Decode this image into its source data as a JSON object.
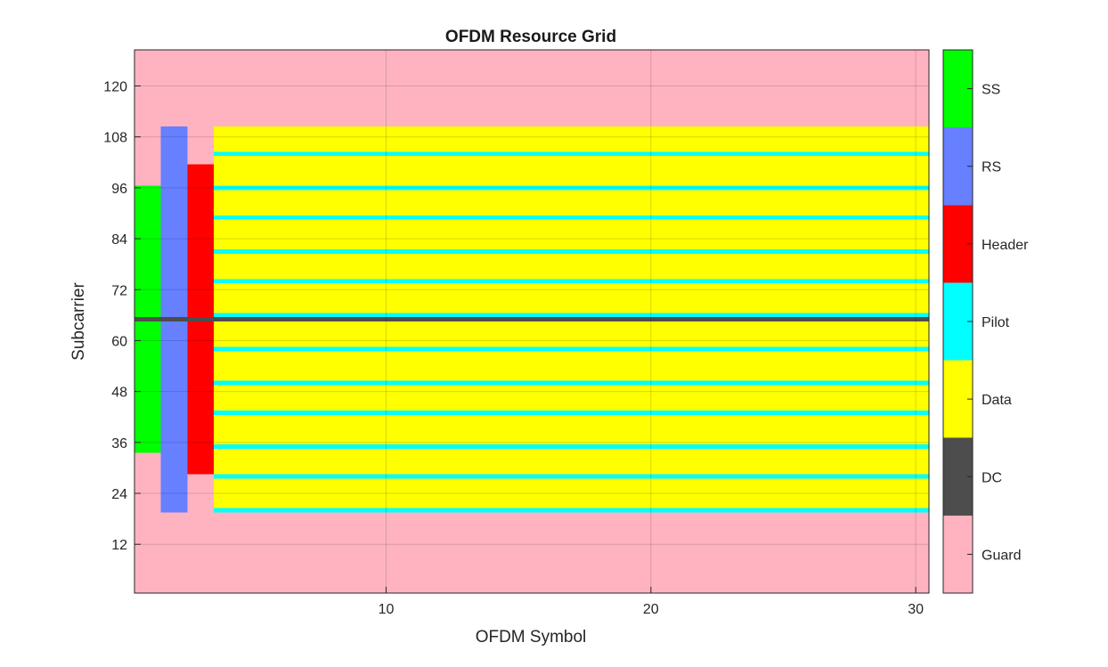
{
  "chart_data": {
    "type": "heatmap",
    "title": "OFDM Resource Grid",
    "xlabel": "OFDM Symbol",
    "ylabel": "Subcarrier",
    "xlim": [
      0.5,
      30.5
    ],
    "ylim": [
      0.5,
      128.5
    ],
    "xticks": [
      10,
      20,
      30
    ],
    "yticks": [
      12,
      24,
      36,
      48,
      60,
      72,
      84,
      96,
      108,
      120
    ],
    "grid": true,
    "categories": [
      {
        "name": "Guard",
        "color": "#ffb3c1"
      },
      {
        "name": "DC",
        "color": "#4d4d4d"
      },
      {
        "name": "Data",
        "color": "#ffff00"
      },
      {
        "name": "Pilot",
        "color": "#00ffff"
      },
      {
        "name": "Header",
        "color": "#ff0000"
      },
      {
        "name": "RS",
        "color": "#6680ff"
      },
      {
        "name": "SS",
        "color": "#00ff00"
      }
    ],
    "background_category": "Guard",
    "regions": [
      {
        "category": "SS",
        "symbols": [
          1,
          1
        ],
        "subcarriers": [
          34,
          96
        ]
      },
      {
        "category": "RS",
        "symbols": [
          2,
          2
        ],
        "subcarriers": [
          20,
          110
        ]
      },
      {
        "category": "Header",
        "symbols": [
          3,
          3
        ],
        "subcarriers": [
          29,
          101
        ]
      },
      {
        "category": "Data",
        "symbols": [
          4,
          30
        ],
        "subcarriers": [
          20,
          110
        ]
      },
      {
        "category": "Pilot",
        "symbols": [
          4,
          30
        ],
        "subcarriers": [
          20,
          20
        ]
      },
      {
        "category": "Pilot",
        "symbols": [
          4,
          30
        ],
        "subcarriers": [
          28,
          28
        ]
      },
      {
        "category": "Pilot",
        "symbols": [
          4,
          30
        ],
        "subcarriers": [
          35,
          35
        ]
      },
      {
        "category": "Pilot",
        "symbols": [
          4,
          30
        ],
        "subcarriers": [
          43,
          43
        ]
      },
      {
        "category": "Pilot",
        "symbols": [
          4,
          30
        ],
        "subcarriers": [
          50,
          50
        ]
      },
      {
        "category": "Pilot",
        "symbols": [
          4,
          30
        ],
        "subcarriers": [
          58,
          58
        ]
      },
      {
        "category": "Pilot",
        "symbols": [
          4,
          30
        ],
        "subcarriers": [
          66,
          66
        ]
      },
      {
        "category": "Pilot",
        "symbols": [
          4,
          30
        ],
        "subcarriers": [
          74,
          74
        ]
      },
      {
        "category": "Pilot",
        "symbols": [
          4,
          30
        ],
        "subcarriers": [
          81,
          81
        ]
      },
      {
        "category": "Pilot",
        "symbols": [
          4,
          30
        ],
        "subcarriers": [
          89,
          89
        ]
      },
      {
        "category": "Pilot",
        "symbols": [
          4,
          30
        ],
        "subcarriers": [
          96,
          96
        ]
      },
      {
        "category": "Pilot",
        "symbols": [
          4,
          30
        ],
        "subcarriers": [
          104,
          104
        ]
      },
      {
        "category": "DC",
        "symbols": [
          1,
          30
        ],
        "subcarriers": [
          65,
          65
        ]
      }
    ],
    "colorbar": {
      "labels": [
        "Guard",
        "DC",
        "Data",
        "Pilot",
        "Header",
        "RS",
        "SS"
      ],
      "location": "right"
    }
  }
}
